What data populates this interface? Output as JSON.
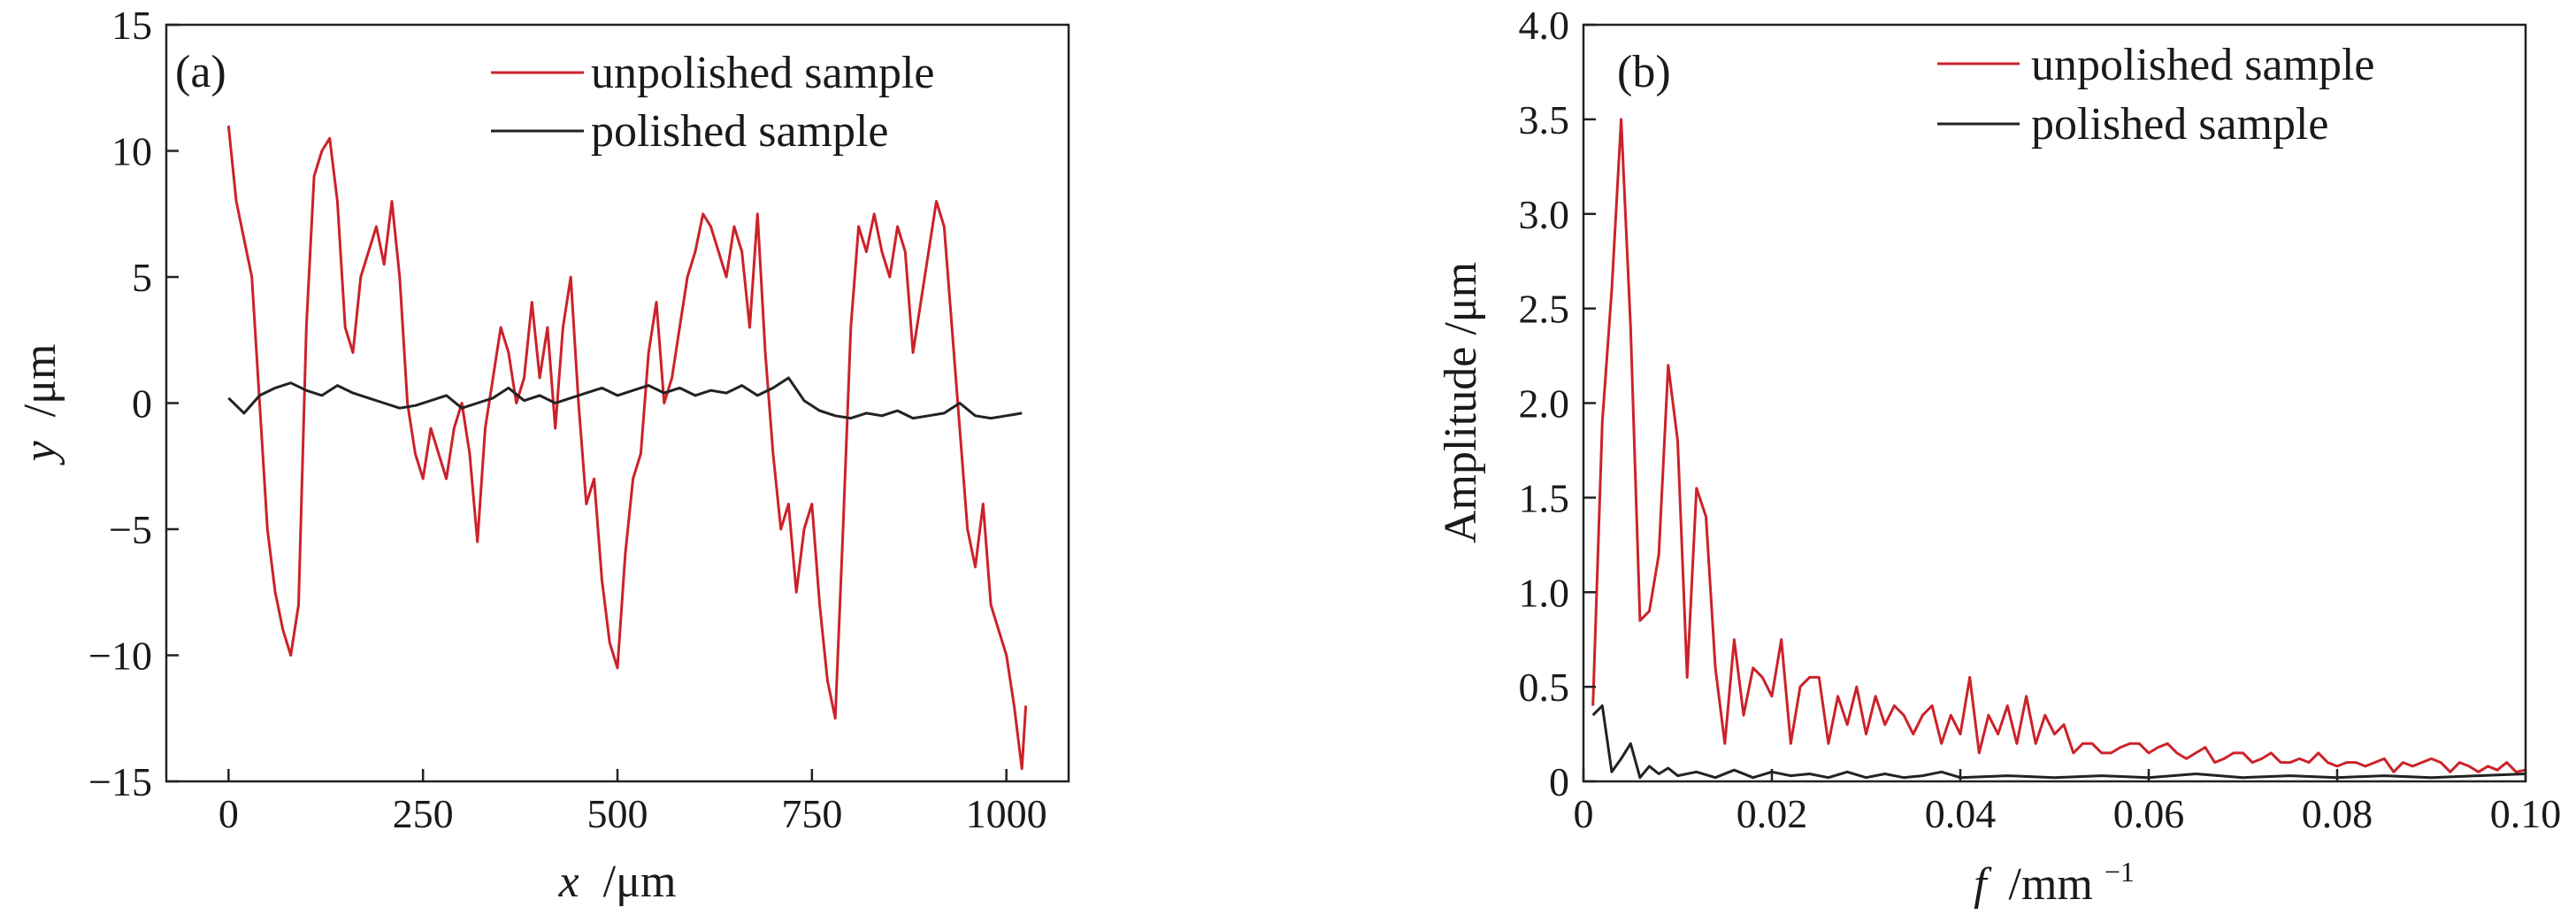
{
  "chart_data": [
    {
      "type": "line",
      "panel_label": "(a)",
      "title": "",
      "xlabel_var": "x",
      "xlabel_unit": "/μm",
      "ylabel_var": "y",
      "ylabel_unit": "/μm",
      "xlim": [
        -80,
        1080
      ],
      "ylim": [
        -15,
        15
      ],
      "xticks": [
        0,
        250,
        500,
        750,
        1000
      ],
      "xtick_labels": [
        "0",
        "250",
        "500",
        "750",
        "1000"
      ],
      "yticks": [
        15,
        10,
        5,
        0,
        -5,
        -10,
        -15
      ],
      "ytick_labels": [
        "15",
        "10",
        "5",
        "0",
        "−5",
        "−10",
        "−15"
      ],
      "legend_position": "top-right",
      "series": [
        {
          "name": "unpolished sample",
          "color": "#cc2229",
          "x": [
            0,
            10,
            20,
            30,
            40,
            50,
            60,
            70,
            80,
            90,
            100,
            110,
            120,
            130,
            140,
            150,
            160,
            170,
            180,
            190,
            200,
            210,
            220,
            230,
            240,
            250,
            260,
            270,
            280,
            290,
            300,
            310,
            320,
            330,
            340,
            350,
            360,
            370,
            380,
            390,
            400,
            410,
            420,
            430,
            440,
            450,
            460,
            470,
            480,
            490,
            500,
            510,
            520,
            530,
            540,
            550,
            560,
            570,
            580,
            590,
            600,
            610,
            620,
            630,
            640,
            650,
            660,
            670,
            680,
            690,
            700,
            710,
            720,
            730,
            740,
            750,
            760,
            770,
            780,
            790,
            800,
            810,
            820,
            830,
            840,
            850,
            860,
            870,
            880,
            890,
            900,
            910,
            920,
            930,
            940,
            950,
            960,
            970,
            980,
            990,
            1000,
            1010,
            1020,
            1025
          ],
          "y": [
            11.0,
            8.0,
            6.5,
            5.0,
            0.0,
            -5.0,
            -7.5,
            -9.0,
            -10.0,
            -8.0,
            3.0,
            9.0,
            10.0,
            10.5,
            8.0,
            3.0,
            2.0,
            5.0,
            6.0,
            7.0,
            5.5,
            8.0,
            5.0,
            0.0,
            -2.0,
            -3.0,
            -1.0,
            -2.0,
            -3.0,
            -1.0,
            0.0,
            -2.0,
            -5.5,
            -1.0,
            1.0,
            3.0,
            2.0,
            0.0,
            1.0,
            4.0,
            1.0,
            3.0,
            -1.0,
            3.0,
            5.0,
            0.0,
            -4.0,
            -3.0,
            -7.0,
            -9.5,
            -10.5,
            -6.0,
            -3.0,
            -2.0,
            2.0,
            4.0,
            0.0,
            1.0,
            3.0,
            5.0,
            6.0,
            7.5,
            7.0,
            6.0,
            5.0,
            7.0,
            6.0,
            3.0,
            7.5,
            2.0,
            -2.0,
            -5.0,
            -4.0,
            -7.5,
            -5.0,
            -4.0,
            -8.0,
            -11.0,
            -12.5,
            -5.0,
            3.0,
            7.0,
            6.0,
            7.5,
            6.0,
            5.0,
            7.0,
            6.0,
            2.0,
            4.0,
            6.0,
            8.0,
            7.0,
            3.0,
            -1.0,
            -5.0,
            -6.5,
            -4.0,
            -8.0,
            -9.0,
            -10.0,
            -12.0,
            -14.5,
            -12.0
          ]
        },
        {
          "name": "polished sample",
          "color": "#222222",
          "x": [
            0,
            20,
            40,
            60,
            80,
            100,
            120,
            140,
            160,
            180,
            200,
            220,
            240,
            260,
            280,
            300,
            320,
            340,
            360,
            380,
            400,
            420,
            440,
            460,
            480,
            500,
            520,
            540,
            560,
            580,
            600,
            620,
            640,
            660,
            680,
            700,
            720,
            740,
            760,
            780,
            800,
            820,
            840,
            860,
            880,
            900,
            920,
            940,
            960,
            980,
            1000,
            1020
          ],
          "y": [
            0.2,
            -0.4,
            0.3,
            0.6,
            0.8,
            0.5,
            0.3,
            0.7,
            0.4,
            0.2,
            0.0,
            -0.2,
            -0.1,
            0.1,
            0.3,
            -0.2,
            0.0,
            0.2,
            0.6,
            0.1,
            0.3,
            0.0,
            0.2,
            0.4,
            0.6,
            0.3,
            0.5,
            0.7,
            0.4,
            0.6,
            0.3,
            0.5,
            0.4,
            0.7,
            0.3,
            0.6,
            1.0,
            0.1,
            -0.3,
            -0.5,
            -0.6,
            -0.4,
            -0.5,
            -0.3,
            -0.6,
            -0.5,
            -0.4,
            0.0,
            -0.5,
            -0.6,
            -0.5,
            -0.4
          ]
        }
      ]
    },
    {
      "type": "line",
      "panel_label": "(b)",
      "title": "",
      "xlabel_var": "f",
      "xlabel_unit": "/mm",
      "xlabel_sup": "−1",
      "ylabel_var": "",
      "ylabel_unit": "Amplitude /μm",
      "xlim": [
        0,
        0.1
      ],
      "ylim": [
        0,
        4.0
      ],
      "xticks": [
        0,
        0.02,
        0.04,
        0.06,
        0.08,
        0.1
      ],
      "xtick_labels": [
        "0",
        "0.02",
        "0.04",
        "0.06",
        "0.08",
        "0.10"
      ],
      "yticks": [
        4.0,
        3.5,
        3.0,
        2.5,
        2.0,
        1.5,
        1.0,
        0.5,
        0
      ],
      "ytick_labels": [
        "4.0",
        "3.5",
        "3.0",
        "2.5",
        "2.0",
        "1.5",
        "1.0",
        "0.5",
        "0"
      ],
      "legend_position": "top-right",
      "series": [
        {
          "name": "unpolished sample",
          "color": "#cc2229",
          "x": [
            0.001,
            0.002,
            0.003,
            0.004,
            0.005,
            0.006,
            0.007,
            0.008,
            0.009,
            0.01,
            0.011,
            0.012,
            0.013,
            0.014,
            0.015,
            0.016,
            0.017,
            0.018,
            0.019,
            0.02,
            0.021,
            0.022,
            0.023,
            0.024,
            0.025,
            0.026,
            0.027,
            0.028,
            0.029,
            0.03,
            0.031,
            0.032,
            0.033,
            0.034,
            0.035,
            0.036,
            0.037,
            0.038,
            0.039,
            0.04,
            0.041,
            0.042,
            0.043,
            0.044,
            0.045,
            0.046,
            0.047,
            0.048,
            0.049,
            0.05,
            0.051,
            0.052,
            0.053,
            0.054,
            0.055,
            0.056,
            0.057,
            0.058,
            0.059,
            0.06,
            0.061,
            0.062,
            0.063,
            0.064,
            0.065,
            0.066,
            0.067,
            0.068,
            0.069,
            0.07,
            0.071,
            0.072,
            0.073,
            0.074,
            0.075,
            0.076,
            0.077,
            0.078,
            0.079,
            0.08,
            0.081,
            0.082,
            0.083,
            0.084,
            0.085,
            0.086,
            0.087,
            0.088,
            0.089,
            0.09,
            0.091,
            0.092,
            0.093,
            0.094,
            0.095,
            0.096,
            0.097,
            0.098,
            0.099,
            0.1
          ],
          "y": [
            0.4,
            1.9,
            2.6,
            3.5,
            2.4,
            0.85,
            0.9,
            1.2,
            2.2,
            1.8,
            0.55,
            1.55,
            1.4,
            0.6,
            0.2,
            0.75,
            0.35,
            0.6,
            0.55,
            0.45,
            0.75,
            0.2,
            0.5,
            0.55,
            0.55,
            0.2,
            0.45,
            0.3,
            0.5,
            0.25,
            0.45,
            0.3,
            0.4,
            0.35,
            0.25,
            0.35,
            0.4,
            0.2,
            0.35,
            0.25,
            0.55,
            0.15,
            0.35,
            0.25,
            0.4,
            0.2,
            0.45,
            0.2,
            0.35,
            0.25,
            0.3,
            0.15,
            0.2,
            0.2,
            0.15,
            0.15,
            0.18,
            0.2,
            0.2,
            0.15,
            0.18,
            0.2,
            0.15,
            0.12,
            0.15,
            0.18,
            0.1,
            0.12,
            0.15,
            0.15,
            0.1,
            0.12,
            0.15,
            0.1,
            0.1,
            0.12,
            0.1,
            0.15,
            0.1,
            0.08,
            0.1,
            0.1,
            0.08,
            0.1,
            0.12,
            0.05,
            0.1,
            0.08,
            0.1,
            0.12,
            0.1,
            0.05,
            0.1,
            0.08,
            0.05,
            0.08,
            0.06,
            0.1,
            0.05,
            0.06
          ]
        },
        {
          "name": "polished sample",
          "color": "#222222",
          "x": [
            0.001,
            0.002,
            0.003,
            0.004,
            0.005,
            0.006,
            0.007,
            0.008,
            0.009,
            0.01,
            0.012,
            0.014,
            0.016,
            0.018,
            0.02,
            0.022,
            0.024,
            0.026,
            0.028,
            0.03,
            0.032,
            0.034,
            0.036,
            0.038,
            0.04,
            0.045,
            0.05,
            0.055,
            0.06,
            0.065,
            0.07,
            0.075,
            0.08,
            0.085,
            0.09,
            0.095,
            0.1
          ],
          "y": [
            0.35,
            0.4,
            0.05,
            0.12,
            0.2,
            0.02,
            0.08,
            0.04,
            0.07,
            0.03,
            0.05,
            0.02,
            0.06,
            0.02,
            0.05,
            0.03,
            0.04,
            0.02,
            0.05,
            0.02,
            0.04,
            0.02,
            0.03,
            0.05,
            0.02,
            0.03,
            0.02,
            0.03,
            0.02,
            0.04,
            0.02,
            0.03,
            0.02,
            0.03,
            0.02,
            0.03,
            0.04
          ]
        }
      ]
    }
  ]
}
